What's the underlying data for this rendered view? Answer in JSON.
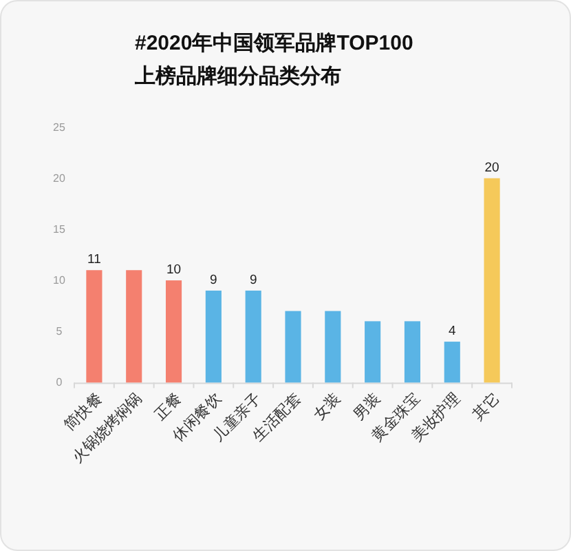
{
  "chart_data": {
    "type": "bar",
    "title": "#2020年中国领军品牌TOP100",
    "subtitle": "上榜品牌细分品类分布",
    "categories": [
      "简快餐",
      "火锅烧烤焖锅",
      "正餐",
      "休闲餐饮",
      "儿童亲子",
      "生活配套",
      "女装",
      "男装",
      "黄金珠宝",
      "美妆护理",
      "其它"
    ],
    "values": [
      11,
      11,
      10,
      9,
      9,
      7,
      7,
      6,
      6,
      4,
      20
    ],
    "colors": [
      "#f4806f",
      "#f4806f",
      "#f4806f",
      "#5ab4e5",
      "#5ab4e5",
      "#5ab4e5",
      "#5ab4e5",
      "#5ab4e5",
      "#5ab4e5",
      "#5ab4e5",
      "#f5c95a"
    ],
    "value_labels": [
      "11",
      null,
      "10",
      "9",
      "9",
      null,
      null,
      null,
      null,
      "4",
      "20"
    ],
    "ylim": [
      0,
      25
    ],
    "yticks": [
      0,
      5,
      10,
      15,
      20,
      25
    ],
    "grid": false
  }
}
